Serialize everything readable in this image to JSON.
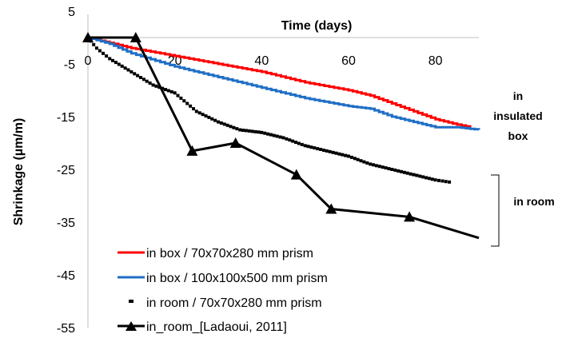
{
  "chart_data": {
    "type": "line",
    "xlabel": "Time (days)",
    "ylabel": "Shrinkage (µm/m)",
    "xlim": [
      0,
      90
    ],
    "ylim": [
      -55,
      5
    ],
    "x_ticks": [
      0,
      20,
      40,
      60,
      80
    ],
    "y_ticks": [
      5,
      -5,
      -15,
      -25,
      -35,
      -45,
      -55
    ],
    "x_axis_position": "top",
    "grid": false,
    "legend_position": "bottom-left",
    "series": [
      {
        "name": "in box / 70x70x280 mm prism",
        "color": "#ff0000",
        "style": "line",
        "points": [
          [
            0,
            0
          ],
          [
            5,
            -1
          ],
          [
            10,
            -2
          ],
          [
            20,
            -3.5
          ],
          [
            30,
            -5
          ],
          [
            40,
            -6.5
          ],
          [
            50,
            -8.5
          ],
          [
            60,
            -10
          ],
          [
            65,
            -11
          ],
          [
            70,
            -12.5
          ],
          [
            75,
            -14
          ],
          [
            80,
            -15.5
          ],
          [
            85,
            -16.5
          ],
          [
            88,
            -17
          ]
        ]
      },
      {
        "name": "in box / 100x100x500 mm prism",
        "color": "#1f6fc5",
        "style": "line",
        "points": [
          [
            0,
            0
          ],
          [
            5,
            -1.2
          ],
          [
            10,
            -3
          ],
          [
            20,
            -5.5
          ],
          [
            30,
            -7.5
          ],
          [
            40,
            -9.5
          ],
          [
            50,
            -11.5
          ],
          [
            60,
            -13
          ],
          [
            65,
            -13.5
          ],
          [
            70,
            -15
          ],
          [
            75,
            -16
          ],
          [
            80,
            -17
          ],
          [
            85,
            -17
          ],
          [
            90,
            -17.5
          ]
        ]
      },
      {
        "name": "in room / 70x70x280 mm prism",
        "color": "#000000",
        "style": "dashes",
        "points": [
          [
            0,
            0
          ],
          [
            2,
            -2
          ],
          [
            5,
            -4
          ],
          [
            10,
            -6.5
          ],
          [
            15,
            -9
          ],
          [
            20,
            -10.5
          ],
          [
            25,
            -14
          ],
          [
            30,
            -16
          ],
          [
            35,
            -17.5
          ],
          [
            40,
            -18
          ],
          [
            45,
            -19
          ],
          [
            50,
            -20.5
          ],
          [
            55,
            -21.5
          ],
          [
            60,
            -22.5
          ],
          [
            65,
            -24
          ],
          [
            70,
            -25
          ],
          [
            75,
            -26
          ],
          [
            80,
            -27
          ],
          [
            84,
            -27.5
          ]
        ]
      },
      {
        "name": "in_room_[Ladaoui, 2011]",
        "color": "#000000",
        "style": "line-triangle",
        "points": [
          [
            0,
            0
          ],
          [
            11,
            0
          ],
          [
            24,
            -21.5
          ],
          [
            34,
            -20
          ],
          [
            48,
            -26
          ],
          [
            56,
            -32.5
          ],
          [
            74,
            -34
          ],
          [
            90,
            -38
          ]
        ]
      }
    ],
    "annotations": [
      {
        "lines": [
          "in",
          "insulated",
          "box"
        ]
      },
      {
        "lines": [
          "in room"
        ]
      }
    ]
  }
}
